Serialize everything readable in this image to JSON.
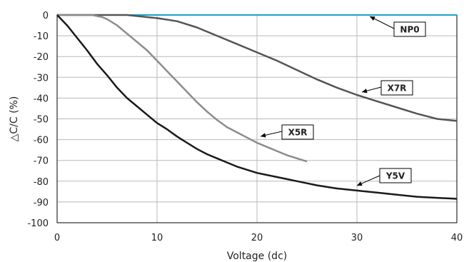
{
  "chart_data": {
    "type": "line",
    "title": "",
    "xlabel": "Voltage (dc)",
    "ylabel": "△C/C (%)",
    "xlim": [
      0,
      40
    ],
    "ylim": [
      -100,
      0
    ],
    "x_ticks": [
      0,
      10,
      20,
      30,
      40
    ],
    "y_ticks": [
      0,
      -10,
      -20,
      -30,
      -40,
      -50,
      -60,
      -70,
      -80,
      -90,
      -100
    ],
    "grid": true,
    "legend": "callouts",
    "series": [
      {
        "name": "NP0",
        "color": "#1aa3c8",
        "x": [
          0,
          40
        ],
        "y": [
          0,
          0
        ]
      },
      {
        "name": "X7R",
        "color": "#555555",
        "x": [
          0,
          5,
          7,
          8,
          10,
          12,
          14,
          16,
          18,
          20,
          22,
          24,
          26,
          28,
          30,
          32,
          34,
          36,
          38,
          40
        ],
        "y": [
          0,
          0,
          0,
          -0.5,
          -1.5,
          -3,
          -6,
          -10,
          -14,
          -18,
          -22,
          -26.5,
          -31,
          -35,
          -38.5,
          -41.5,
          -44.5,
          -47.5,
          -50,
          -51
        ]
      },
      {
        "name": "X5R",
        "color": "#8c8c8c",
        "x": [
          0,
          3.5,
          4.5,
          5,
          6,
          7,
          8,
          9,
          10,
          11,
          12,
          13,
          14,
          15,
          16,
          17,
          18,
          19,
          20,
          21,
          22,
          23,
          24,
          25
        ],
        "y": [
          0,
          0,
          -1,
          -2,
          -5,
          -9,
          -13,
          -17,
          -22,
          -27,
          -32,
          -37,
          -42,
          -46.5,
          -50.5,
          -54,
          -56.5,
          -59,
          -61.5,
          -63.5,
          -65.5,
          -67.5,
          -69,
          -70.5
        ]
      },
      {
        "name": "Y5V",
        "color": "#1a1a1a",
        "x": [
          0,
          1,
          2,
          3,
          4,
          5,
          6,
          7,
          8,
          9,
          10,
          11,
          12,
          13,
          14,
          15,
          16,
          17,
          18,
          19,
          20,
          21,
          22,
          23,
          24,
          25,
          26,
          28,
          30,
          32,
          34,
          36,
          38,
          40
        ],
        "y": [
          0,
          -5,
          -11,
          -17,
          -23.5,
          -29,
          -35,
          -40,
          -44,
          -48,
          -52,
          -55,
          -58.5,
          -61.5,
          -64.5,
          -67,
          -69,
          -71,
          -73,
          -74.5,
          -76,
          -77,
          -78,
          -79,
          -80,
          -81,
          -82,
          -83.5,
          -84.5,
          -85.5,
          -86.5,
          -87.5,
          -88,
          -88.5
        ]
      }
    ],
    "annotations": [
      {
        "text": "NP0",
        "series": "NP0"
      },
      {
        "text": "X7R",
        "series": "X7R"
      },
      {
        "text": "X5R",
        "series": "X5R"
      },
      {
        "text": "Y5V",
        "series": "Y5V"
      }
    ]
  }
}
